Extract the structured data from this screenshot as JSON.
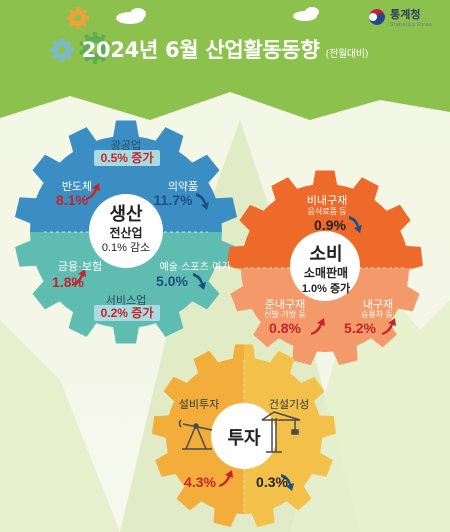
{
  "header": {
    "title": "2024년 6월 산업활동동향",
    "subtitle": "(전월대비)",
    "logo_name": "통계청",
    "logo_sub": "Statistics Korea"
  },
  "production": {
    "title": "생산",
    "total_label": "전산업",
    "total_value": "0.1% 감소",
    "mining_label": "광공업",
    "mining_value": "0.5% 증가",
    "semi_label": "반도체",
    "semi_value": "8.1%",
    "pharma_label": "의약품",
    "pharma_value": "11.7%",
    "finance_label": "금융·보험",
    "finance_value": "1.8%",
    "arts_label": "예술·스포츠·여가",
    "arts_value": "5.0%",
    "service_label": "서비스업",
    "service_value": "0.2% 증가"
  },
  "consumption": {
    "title": "소비",
    "retail_label": "소매판매",
    "retail_value": "1.0% 증가",
    "nondurable_label": "비내구재",
    "nondurable_sub": "음식료품 등",
    "nondurable_value": "0.9%",
    "semidurable_label": "준내구재",
    "semidurable_sub": "신발·가방 등",
    "semidurable_value": "0.8%",
    "durable_label": "내구재",
    "durable_sub": "승용차 등",
    "durable_value": "5.2%"
  },
  "investment": {
    "title": "투자",
    "facility_label": "설비투자",
    "facility_value": "4.3%",
    "construction_label": "건설기성",
    "construction_value": "0.3%"
  },
  "colors": {
    "header": "#8dc14e",
    "production_top": "#3a8ec4",
    "production_bottom": "#5fbcb0",
    "consumption_top": "#ee6a2a",
    "consumption_bottom": "#f49a6a",
    "investment_left": "#f3ad3b",
    "investment_right": "#f3c14a",
    "up": "#c4242a",
    "down": "#1d4f86"
  },
  "icons": [
    "gear-icon",
    "cloud-icon",
    "arrow-up-icon",
    "arrow-down-icon",
    "oil-pump-icon",
    "crane-icon",
    "government-logo-icon"
  ]
}
